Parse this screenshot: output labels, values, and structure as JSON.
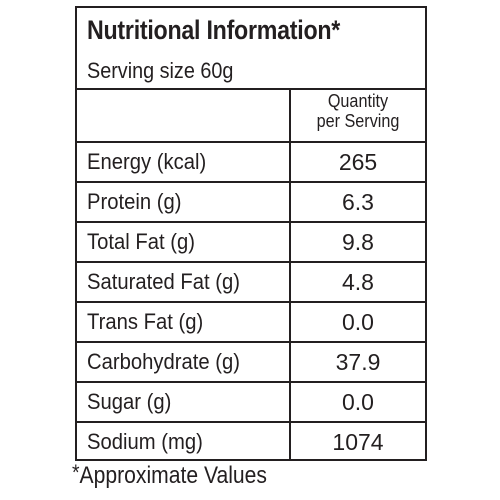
{
  "header": {
    "title": "Nutritional Information*",
    "serving_size": "Serving size 60g"
  },
  "table": {
    "column_header_line1": "Quantity",
    "column_header_line2": "per Serving",
    "rows": [
      {
        "nutrient": "Energy (kcal)",
        "value": "265"
      },
      {
        "nutrient": "Protein (g)",
        "value": "6.3"
      },
      {
        "nutrient": "Total Fat (g)",
        "value": "9.8"
      },
      {
        "nutrient": "Saturated Fat (g)",
        "value": "4.8"
      },
      {
        "nutrient": "Trans Fat (g)",
        "value": "0.0"
      },
      {
        "nutrient": "Carbohydrate (g)",
        "value": "37.9"
      },
      {
        "nutrient": "Sugar (g)",
        "value": "0.0"
      },
      {
        "nutrient": "Sodium (mg)",
        "value": "1074"
      }
    ]
  },
  "footnote": {
    "star": "*",
    "text": "Approximate Values"
  }
}
